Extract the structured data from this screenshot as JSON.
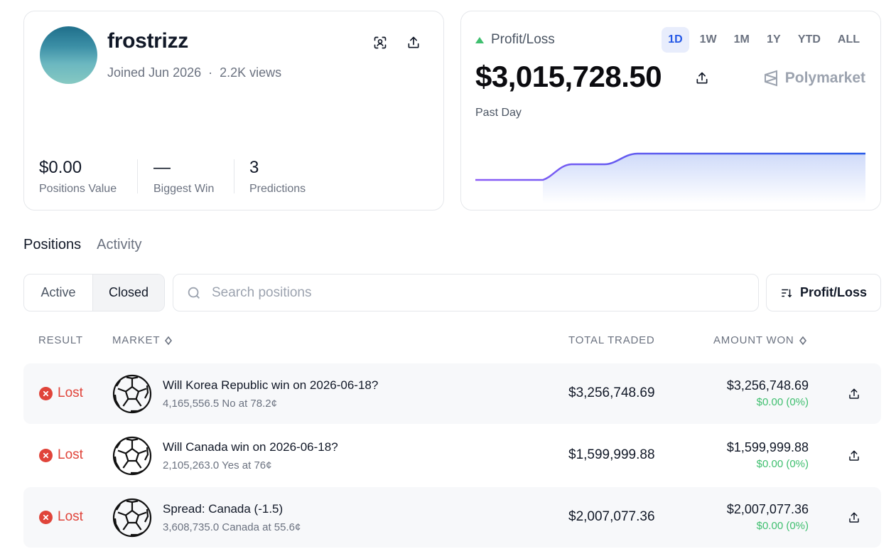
{
  "profile": {
    "username": "frostrizz",
    "joined": "Joined Jun 2026",
    "separator": "·",
    "views": "2.2K views",
    "stats": [
      {
        "value": "$0.00",
        "label": "Positions Value"
      },
      {
        "value": "—",
        "label": "Biggest Win"
      },
      {
        "value": "3",
        "label": "Predictions"
      }
    ]
  },
  "pnl": {
    "label": "Profit/Loss",
    "value": "$3,015,728.50",
    "period": "Past Day",
    "brand": "Polymarket",
    "ranges": [
      "1D",
      "1W",
      "1M",
      "1Y",
      "YTD",
      "ALL"
    ],
    "active_range": "1D",
    "colors": {
      "up": "#3fbf6f",
      "line_start": "#8b5cf6",
      "line_end": "#2458e6"
    }
  },
  "tabs": [
    "Positions",
    "Activity"
  ],
  "active_tab": "Positions",
  "filter": {
    "options": [
      "Active",
      "Closed"
    ],
    "selected": "Closed"
  },
  "search": {
    "placeholder": "Search positions",
    "value": ""
  },
  "sort": {
    "label": "Profit/Loss"
  },
  "table": {
    "headers": {
      "result": "RESULT",
      "market": "MARKET",
      "total_traded": "TOTAL TRADED",
      "amount_won": "AMOUNT WON"
    },
    "rows": [
      {
        "result": "Lost",
        "title": "Will Korea Republic win on 2026-06-18?",
        "sub": "4,165,556.5 No at 78.2¢",
        "traded": "$3,256,748.69",
        "won": "$3,256,748.69",
        "change": "$0.00 (0%)"
      },
      {
        "result": "Lost",
        "title": "Will Canada win on 2026-06-18?",
        "sub": "2,105,263.0 Yes at 76¢",
        "traded": "$1,599,999.88",
        "won": "$1,599,999.88",
        "change": "$0.00 (0%)"
      },
      {
        "result": "Lost",
        "title": "Spread: Canada (-1.5)",
        "sub": "3,608,735.0 Canada at 55.6¢",
        "traded": "$2,007,077.36",
        "won": "$2,007,077.36",
        "change": "$0.00 (0%)"
      }
    ]
  },
  "icons": {
    "lost": "x-circle-icon",
    "market": "soccer-ball-icon",
    "share": "share-icon",
    "scan": "scan-face-icon",
    "search": "search-icon",
    "sort": "sort-icon",
    "brand": "polymarket-logo"
  }
}
